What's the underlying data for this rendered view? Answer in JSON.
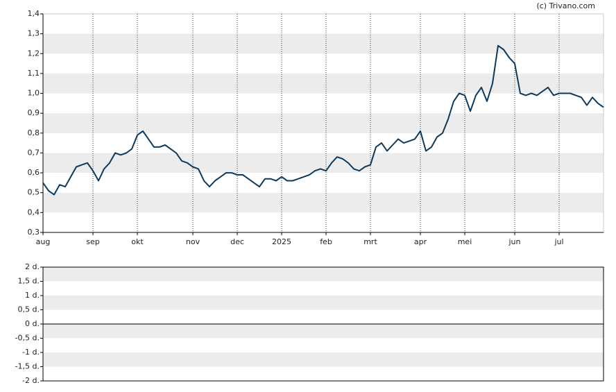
{
  "credit": "(c) Trivano.com",
  "chart_data": [
    {
      "type": "line",
      "categories": [
        "aug",
        null,
        null,
        null,
        null,
        null,
        null,
        null,
        null,
        "sep",
        null,
        null,
        null,
        null,
        null,
        null,
        null,
        "okt",
        null,
        null,
        null,
        null,
        null,
        null,
        null,
        null,
        null,
        "nov",
        null,
        null,
        null,
        null,
        null,
        null,
        null,
        "dec",
        null,
        null,
        null,
        null,
        null,
        null,
        null,
        "2025",
        null,
        null,
        null,
        null,
        null,
        null,
        null,
        "feb",
        null,
        null,
        null,
        null,
        null,
        null,
        null,
        "mrt",
        null,
        null,
        null,
        null,
        null,
        null,
        null,
        null,
        "apr",
        null,
        null,
        null,
        null,
        null,
        null,
        null,
        "mei",
        null,
        null,
        null,
        null,
        null,
        null,
        null,
        null,
        "jun",
        null,
        null,
        null,
        null,
        null,
        null,
        null,
        "jul",
        null,
        null,
        null,
        null,
        null,
        null,
        null,
        null
      ],
      "series": [
        {
          "color": "#0d3a5c",
          "values": [
            0.55,
            0.51,
            0.49,
            0.54,
            0.53,
            0.58,
            0.63,
            0.64,
            0.65,
            0.61,
            0.56,
            0.62,
            0.65,
            0.7,
            0.69,
            0.7,
            0.72,
            0.79,
            0.81,
            0.77,
            0.73,
            0.73,
            0.74,
            0.72,
            0.7,
            0.66,
            0.65,
            0.63,
            0.62,
            0.56,
            0.53,
            0.56,
            0.58,
            0.6,
            0.6,
            0.59,
            0.59,
            0.57,
            0.55,
            0.53,
            0.57,
            0.57,
            0.56,
            0.58,
            0.56,
            0.56,
            0.57,
            0.58,
            0.59,
            0.61,
            0.62,
            0.61,
            0.65,
            0.68,
            0.67,
            0.65,
            0.62,
            0.61,
            0.63,
            0.64,
            0.73,
            0.75,
            0.71,
            0.74,
            0.77,
            0.75,
            0.76,
            0.77,
            0.81,
            0.71,
            0.73,
            0.78,
            0.8,
            0.87,
            0.96,
            1.0,
            0.99,
            0.91,
            0.99,
            1.03,
            0.96,
            1.05,
            1.24,
            1.22,
            1.18,
            1.15,
            1.0,
            0.99,
            1.0,
            0.99,
            1.01,
            1.03,
            0.99,
            1.0,
            1.0,
            1.0,
            0.99,
            0.98,
            0.94,
            0.98,
            0.95,
            0.93
          ]
        }
      ],
      "ylim": [
        0.3,
        1.4
      ],
      "yticks": [
        {
          "value": 0.3,
          "label": "0,3"
        },
        {
          "value": 0.4,
          "label": "0,4"
        },
        {
          "value": 0.5,
          "label": "0,5"
        },
        {
          "value": 0.6,
          "label": "0,6"
        },
        {
          "value": 0.7,
          "label": "0,7"
        },
        {
          "value": 0.8,
          "label": "0,8"
        },
        {
          "value": 0.9,
          "label": "0,9"
        },
        {
          "value": 1.0,
          "label": "1,0"
        },
        {
          "value": 1.1,
          "label": "1,1"
        },
        {
          "value": 1.2,
          "label": "1,2"
        },
        {
          "value": 1.3,
          "label": "1,3"
        },
        {
          "value": 1.4,
          "label": "1,4"
        }
      ],
      "grid": true
    },
    {
      "type": "line",
      "ylim": [
        -2,
        2
      ],
      "yticks": [
        {
          "value": -2,
          "label": "-2 d."
        },
        {
          "value": -1.5,
          "label": "-1,5 d."
        },
        {
          "value": -1,
          "label": "-1 d."
        },
        {
          "value": -0.5,
          "label": "-0,5 d."
        },
        {
          "value": 0,
          "label": "0 d."
        },
        {
          "value": 0.5,
          "label": "0,5 d."
        },
        {
          "value": 1,
          "label": "1 d."
        },
        {
          "value": 1.5,
          "label": "1,5 d."
        },
        {
          "value": 2,
          "label": "2 d."
        }
      ],
      "grid": true
    }
  ]
}
